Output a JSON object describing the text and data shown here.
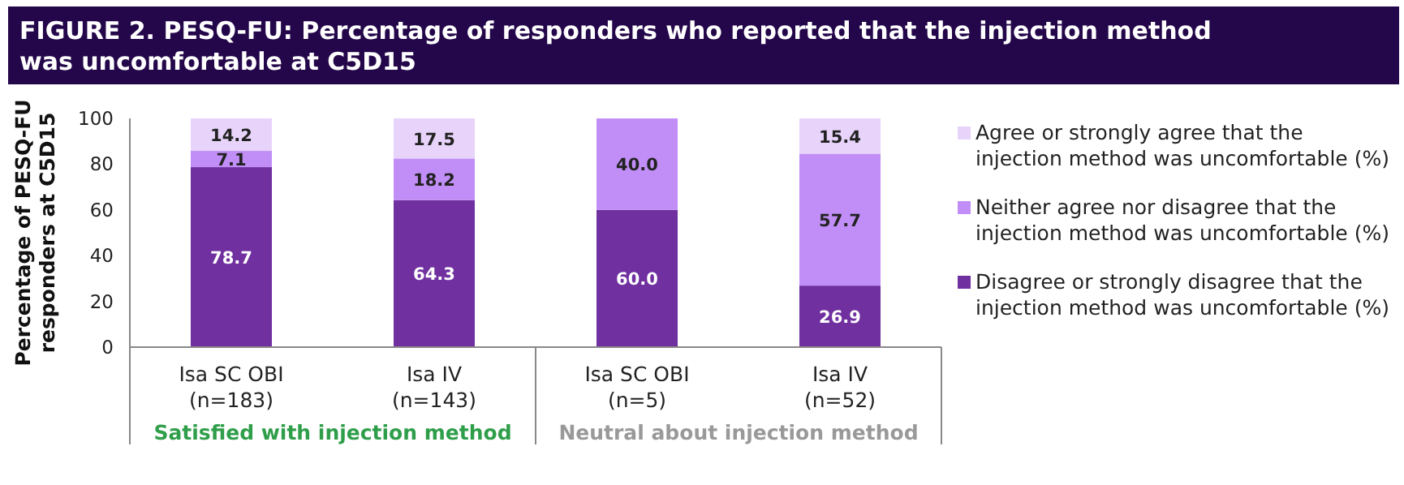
{
  "chart_data": {
    "type": "bar",
    "title": "FIGURE 2. PESQ-FU: Percentage of responders who reported that the injection method was uncomfortable at C5D15",
    "ylabel": "Percentage of PESQ-FU responders at C5D15",
    "categories": [
      "Isa SC OBI\n(n=183)",
      "Isa IV\n(n=143)",
      "Isa SC OBI\n(n=5)",
      "Isa IV\n(n=52)"
    ],
    "series": [
      {
        "name": "Disagree or strongly disagree that the injection method was uncomfortable (%)",
        "color": "#7030a0",
        "values": [
          78.7,
          64.3,
          60.0,
          26.9
        ]
      },
      {
        "name": "Neither agree nor disagree that the injection method was uncomfortable (%)",
        "color": "#c18ef7",
        "values": [
          7.1,
          18.2,
          40.0,
          57.7
        ]
      },
      {
        "name": "Agree or strongly agree that the injection method was uncomfortable (%)",
        "color": "#e8d4fb",
        "values": [
          14.2,
          17.5,
          null,
          15.4
        ]
      }
    ],
    "stacked": true,
    "value_labels": [
      [
        "78.7",
        "64.3",
        "60.0",
        "26.9"
      ],
      [
        "7.1",
        "18.2",
        "40.0",
        "57.7"
      ],
      [
        "14.2",
        "17.5",
        null,
        "15.4"
      ]
    ],
    "ylim": [
      0,
      100
    ],
    "yticks": [
      0,
      20,
      40,
      60,
      80,
      100
    ],
    "legend": "right",
    "annotations": [
      "Satisfied with injection method",
      "Neutral about injection method"
    ]
  }
}
